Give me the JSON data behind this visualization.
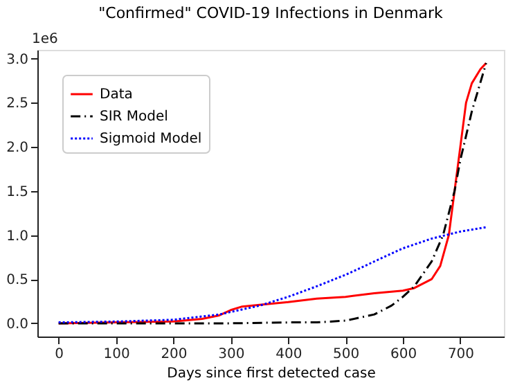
{
  "chart_data": {
    "type": "line",
    "title": "\"Confirmed\" COVID-19 Infections in Denmark",
    "xlabel": "Days since first detected case",
    "annotations": [
      "1e6"
    ],
    "xlim": [
      -37,
      776
    ],
    "xticks": [
      0,
      100,
      200,
      300,
      400,
      500,
      600,
      700
    ],
    "ylim": [
      -0.15,
      3.1
    ],
    "yticks": [
      {
        "value": 0,
        "label": "0.0"
      },
      {
        "value": 0.5,
        "label": "0.5"
      },
      {
        "value": 1,
        "label": "1.0"
      },
      {
        "value": 1.5,
        "label": "1.5"
      },
      {
        "value": 2,
        "label": "2.0"
      },
      {
        "value": 2.5,
        "label": "2.5"
      },
      {
        "value": 3,
        "label": "3.0"
      }
    ],
    "grid": false,
    "legend": "top left",
    "marker": "none",
    "series": [
      {
        "name": "Data",
        "color": "#ff0000",
        "line_style": "solid",
        "x": [
          0,
          100,
          200,
          250,
          280,
          300,
          320,
          350,
          400,
          450,
          500,
          550,
          600,
          620,
          650,
          665,
          680,
          690,
          700,
          710,
          720,
          735,
          745
        ],
        "values": [
          0,
          0.01,
          0.02,
          0.05,
          0.09,
          0.15,
          0.19,
          0.21,
          0.24,
          0.28,
          0.3,
          0.34,
          0.37,
          0.4,
          0.5,
          0.65,
          1.0,
          1.5,
          2.0,
          2.5,
          2.72,
          2.88,
          2.95
        ]
      },
      {
        "name": "SIR Model",
        "color": "#000000",
        "line_style": "dashdot",
        "x": [
          0,
          300,
          400,
          450,
          500,
          550,
          580,
          600,
          620,
          650,
          670,
          690,
          700,
          720,
          745
        ],
        "values": [
          0,
          0,
          0.01,
          0.01,
          0.03,
          0.1,
          0.2,
          0.3,
          0.42,
          0.7,
          1.0,
          1.5,
          1.85,
          2.4,
          2.95
        ]
      },
      {
        "name": "Sigmoid Model",
        "color": "#0000ff",
        "line_style": "dotted",
        "x": [
          0,
          100,
          200,
          280,
          350,
          400,
          450,
          500,
          550,
          600,
          650,
          700,
          745
        ],
        "values": [
          0.01,
          0.02,
          0.04,
          0.1,
          0.2,
          0.3,
          0.42,
          0.55,
          0.7,
          0.85,
          0.96,
          1.04,
          1.09
        ]
      }
    ]
  }
}
